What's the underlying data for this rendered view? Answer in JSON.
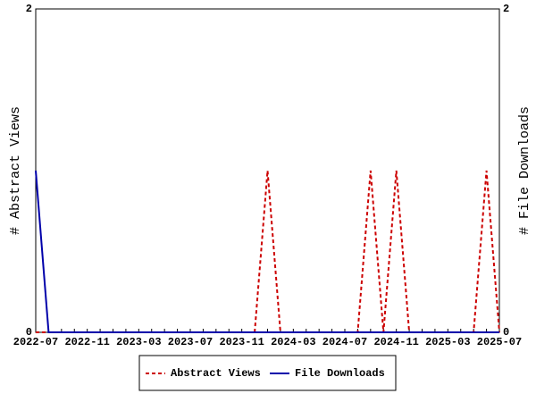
{
  "chart_data": {
    "type": "line",
    "categories": [
      "2022-07",
      null,
      null,
      null,
      "2022-11",
      null,
      null,
      null,
      "2023-03",
      null,
      null,
      null,
      "2023-07",
      null,
      null,
      null,
      "2023-11",
      null,
      null,
      null,
      "2024-03",
      null,
      null,
      null,
      "2024-07",
      null,
      null,
      null,
      "2024-11",
      null,
      null,
      null,
      "2025-03",
      null,
      null,
      null,
      "2025-07"
    ],
    "series": [
      {
        "name": "Abstract Views",
        "color": "#cc0000",
        "values": [
          0,
          0,
          0,
          0,
          0,
          0,
          0,
          0,
          0,
          0,
          0,
          0,
          0,
          0,
          0,
          0,
          0,
          0,
          1,
          0,
          0,
          0,
          0,
          0,
          0,
          0,
          1,
          0,
          1,
          0,
          0,
          0,
          0,
          0,
          0,
          1,
          0
        ]
      },
      {
        "name": "File Downloads",
        "color": "#0000aa",
        "axis": "y2",
        "values": [
          1,
          0,
          0,
          0,
          0,
          0,
          0,
          0,
          0,
          0,
          0,
          0,
          0,
          0,
          0,
          0,
          0,
          0,
          0,
          0,
          0,
          0,
          0,
          0,
          0,
          0,
          0,
          0,
          0,
          0,
          0,
          0,
          0,
          0,
          0,
          0,
          0
        ]
      }
    ],
    "ylabel": "# Abstract Views",
    "y2label": "# File Downloads",
    "ylim": [
      0,
      2
    ],
    "yticks": [
      0,
      2
    ],
    "y2lim": [
      0,
      2
    ],
    "y2ticks": [
      0,
      2
    ],
    "legend": "bottom"
  }
}
